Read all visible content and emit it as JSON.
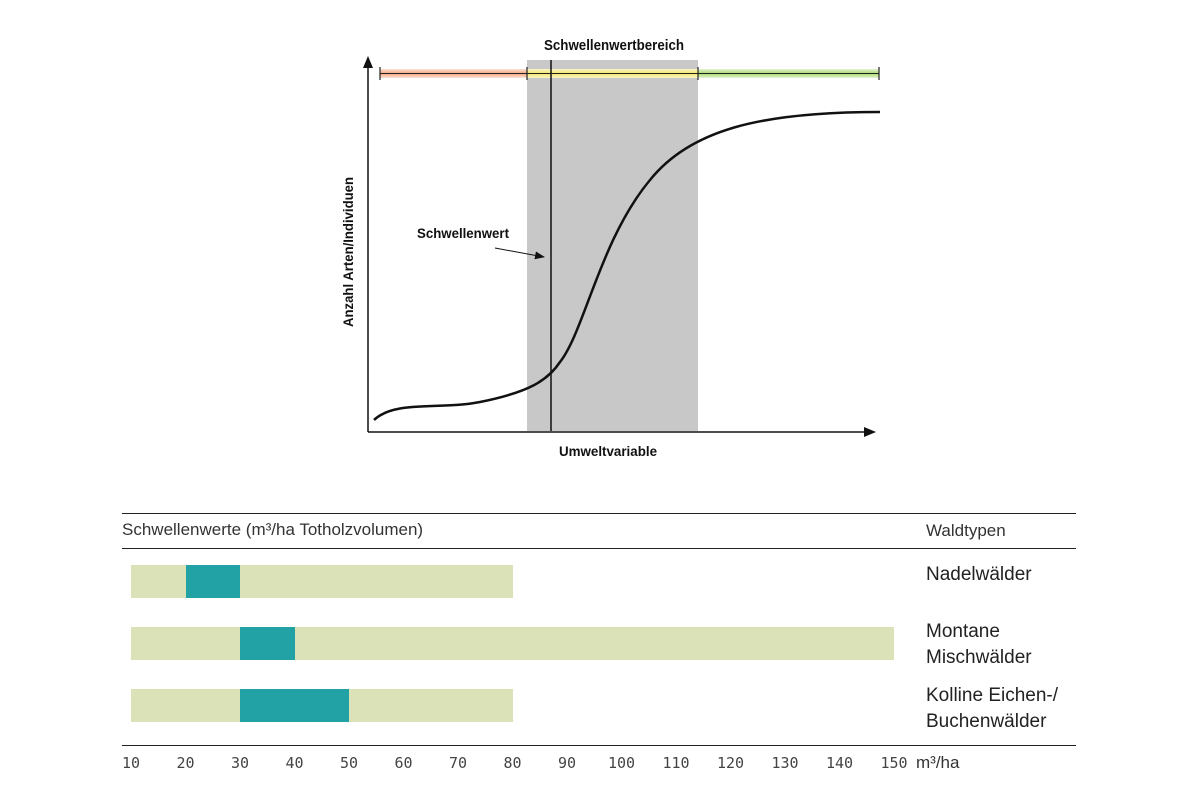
{
  "chart_data": [
    {
      "type": "line",
      "title": "Schwellenwertbereich",
      "xlabel": "Umweltvariable",
      "ylabel": "Anzahl Arten/Individuen",
      "annotation": "Schwellenwert",
      "zones": [
        {
          "color": "#f4a582"
        },
        {
          "color": "#f2e46a"
        },
        {
          "color": "#a6d96a"
        }
      ],
      "colors": {
        "band": "#c8c8c8",
        "curve": "#111111"
      }
    },
    {
      "type": "bar",
      "title": "Schwellenwerte (m³/ha Totholzvolumen)",
      "legend_title": "Waldtypen",
      "xlabel": "m³/ha",
      "xticks": [
        10,
        20,
        30,
        40,
        50,
        60,
        70,
        80,
        90,
        100,
        110,
        120,
        130,
        140,
        150
      ],
      "xlim": [
        10,
        160
      ],
      "categories": [
        "Nadelwälder",
        "Montane Mischwälder",
        "Kolline Eichen-/ Buchenwälder"
      ],
      "category_lines": [
        [
          "Nadelwälder"
        ],
        [
          "Montane",
          "Mischwälder"
        ],
        [
          "Kolline Eichen-/",
          "Buchenwälder"
        ]
      ],
      "ranges": [
        [
          10,
          80
        ],
        [
          10,
          150
        ],
        [
          10,
          80
        ]
      ],
      "thresholds": [
        [
          20,
          30
        ],
        [
          30,
          40
        ],
        [
          30,
          50
        ]
      ],
      "colors": {
        "range": "#dbe2b8",
        "threshold": "#22a2a4"
      }
    }
  ]
}
